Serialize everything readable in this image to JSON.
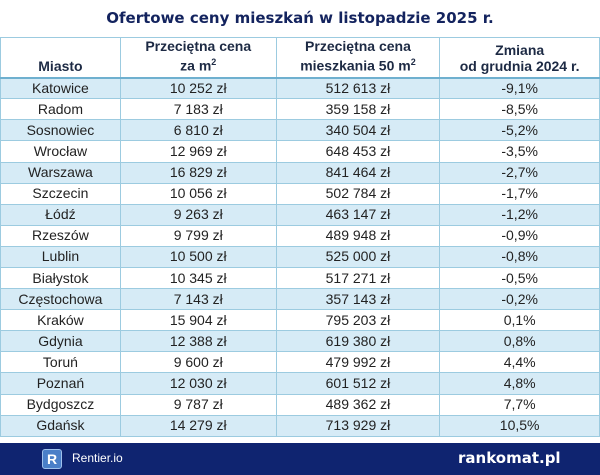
{
  "title": "Ofertowe ceny mieszkań w listopadzie 2025 r.",
  "headers": {
    "city": "Miasto",
    "price_m2_a": "Przeciętna cena",
    "price_m2_b": "za m",
    "price_50_a": "Przeciętna cena",
    "price_50_b": "mieszkania 50 m",
    "sup": "2",
    "change_a": "Zmiana",
    "change_b": "od grudnia 2024 r."
  },
  "rows": [
    {
      "city": "Katowice",
      "m2": "10 252 zł",
      "flat": "512 613 zł",
      "change": "-9,1%"
    },
    {
      "city": "Radom",
      "m2": "7 183 zł",
      "flat": "359 158 zł",
      "change": "-8,5%"
    },
    {
      "city": "Sosnowiec",
      "m2": "6 810 zł",
      "flat": "340 504 zł",
      "change": "-5,2%"
    },
    {
      "city": "Wrocław",
      "m2": "12 969 zł",
      "flat": "648 453 zł",
      "change": "-3,5%"
    },
    {
      "city": "Warszawa",
      "m2": "16 829 zł",
      "flat": "841 464 zł",
      "change": "-2,7%"
    },
    {
      "city": "Szczecin",
      "m2": "10 056 zł",
      "flat": "502 784 zł",
      "change": "-1,7%"
    },
    {
      "city": "Łódź",
      "m2": "9 263 zł",
      "flat": "463 147 zł",
      "change": "-1,2%"
    },
    {
      "city": "Rzeszów",
      "m2": "9 799 zł",
      "flat": "489 948 zł",
      "change": "-0,9%"
    },
    {
      "city": "Lublin",
      "m2": "10 500 zł",
      "flat": "525 000 zł",
      "change": "-0,8%"
    },
    {
      "city": "Białystok",
      "m2": "10 345 zł",
      "flat": "517 271 zł",
      "change": "-0,5%"
    },
    {
      "city": "Częstochowa",
      "m2": "7 143 zł",
      "flat": "357 143 zł",
      "change": "-0,2%"
    },
    {
      "city": "Kraków",
      "m2": "15 904 zł",
      "flat": "795 203 zł",
      "change": "0,1%"
    },
    {
      "city": "Gdynia",
      "m2": "12 388 zł",
      "flat": "619 380 zł",
      "change": "0,8%"
    },
    {
      "city": "Toruń",
      "m2": "9 600 zł",
      "flat": "479 992 zł",
      "change": "4,4%"
    },
    {
      "city": "Poznań",
      "m2": "12 030 zł",
      "flat": "601 512 zł",
      "change": "4,8%"
    },
    {
      "city": "Bydgoszcz",
      "m2": "9 787 zł",
      "flat": "489 362 zł",
      "change": "7,7%"
    },
    {
      "city": "Gdańsk",
      "m2": "14 279 zł",
      "flat": "713 929 zł",
      "change": "10,5%"
    }
  ],
  "footer": {
    "left_logo": "R",
    "left_text": "Rentier.io",
    "right_text": "rankomat.pl"
  },
  "colors": {
    "navy": "#0f2470",
    "row_blue": "#d6ebf6"
  }
}
